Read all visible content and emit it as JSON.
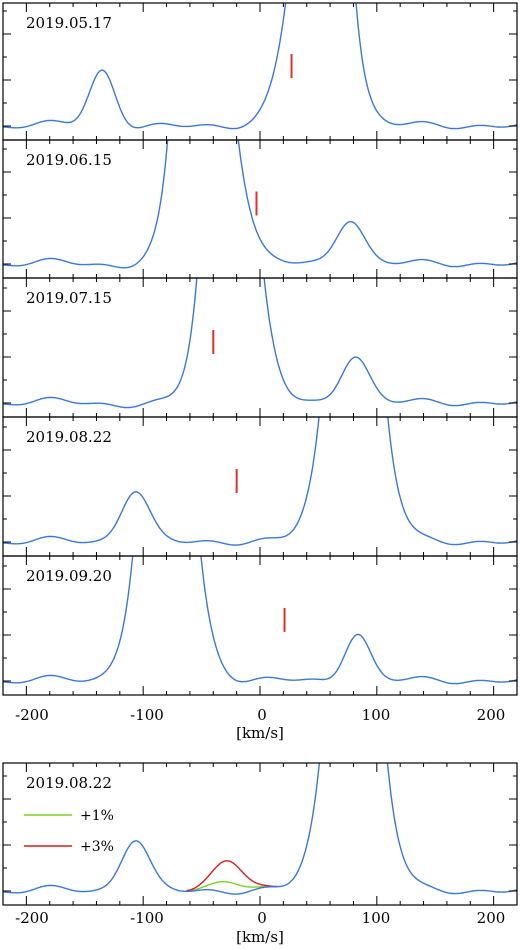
{
  "figure": {
    "colors": {
      "spectrum": "#3a78d8",
      "marker": "#e0302a",
      "legend_plus1": "#7ed321",
      "legend_plus3": "#d81c1c",
      "axes": "#000000"
    }
  },
  "chart_data": [
    {
      "type": "line",
      "panel": "2019.05.17",
      "xlim": [
        -220,
        220
      ],
      "x_ticks": [
        -200,
        -100,
        0,
        100,
        200
      ],
      "x_tick_labels_shown": false,
      "marker_velocity": 27,
      "components": [
        {
          "center": -135,
          "sigma": 11,
          "amplitude": 0.45
        },
        {
          "center": 57,
          "sigma": 12,
          "amplitude": 3.0
        },
        {
          "center": 50,
          "sigma": 20,
          "amplitude": 2.5
        }
      ]
    },
    {
      "type": "line",
      "panel": "2019.06.15",
      "xlim": [
        -220,
        220
      ],
      "x_ticks": [
        -200,
        -100,
        0,
        100,
        200
      ],
      "x_tick_labels_shown": false,
      "marker_velocity": -3,
      "components": [
        {
          "center": -54,
          "sigma": 12,
          "amplitude": 3.0
        },
        {
          "center": -46,
          "sigma": 20,
          "amplitude": 2.5
        },
        {
          "center": 77,
          "sigma": 12,
          "amplitude": 0.38
        }
      ]
    },
    {
      "type": "line",
      "panel": "2019.07.15",
      "xlim": [
        -220,
        220
      ],
      "x_ticks": [
        -200,
        -100,
        0,
        100,
        200
      ],
      "x_tick_labels_shown": false,
      "marker_velocity": -40,
      "components": [
        {
          "center": -28,
          "sigma": 12,
          "amplitude": 3.0
        },
        {
          "center": -24,
          "sigma": 19,
          "amplitude": 2.5
        },
        {
          "center": 81,
          "sigma": 12,
          "amplitude": 0.4
        }
      ]
    },
    {
      "type": "line",
      "panel": "2019.08.22",
      "xlim": [
        -220,
        220
      ],
      "x_ticks": [
        -200,
        -100,
        0,
        100,
        200
      ],
      "x_tick_labels_shown": false,
      "marker_velocity": -20,
      "components": [
        {
          "center": -107,
          "sigma": 12,
          "amplitude": 0.43
        },
        {
          "center": 80,
          "sigma": 12,
          "amplitude": 3.0
        },
        {
          "center": 80,
          "sigma": 20,
          "amplitude": 2.5
        }
      ]
    },
    {
      "type": "line",
      "panel": "2019.09.20",
      "xlim": [
        -220,
        220
      ],
      "x_ticks": [
        -200,
        -100,
        0,
        100,
        200
      ],
      "x_tick_labels_shown": true,
      "marker_velocity": 21,
      "components": [
        {
          "center": -80,
          "sigma": 12,
          "amplitude": 3.0
        },
        {
          "center": -80,
          "sigma": 20,
          "amplitude": 2.5
        },
        {
          "center": 83,
          "sigma": 11,
          "amplitude": 0.4
        }
      ]
    },
    {
      "type": "line",
      "panel": "2019.08.22",
      "xlim": [
        -220,
        220
      ],
      "x_ticks": [
        -200,
        -100,
        0,
        100,
        200
      ],
      "x_tick_labels_shown": true,
      "xlabel": "[km/s]",
      "legend": {
        "position": "top-left",
        "entries": [
          "+1%",
          "+3%"
        ]
      },
      "components": [
        {
          "center": -107,
          "sigma": 12,
          "amplitude": 0.43
        },
        {
          "center": 80,
          "sigma": 12,
          "amplitude": 3.0
        },
        {
          "center": 80,
          "sigma": 20,
          "amplitude": 2.5
        }
      ],
      "injected_signal": {
        "center": -27,
        "sigma": 13,
        "range": [
          -63,
          15
        ],
        "amplitudes": {
          "+1%": 0.09,
          "+3%": 0.26
        }
      }
    }
  ],
  "axes_text": {
    "xlabel_top_block": "[km/s]",
    "xlabel_bottom_panel": "[km/s]",
    "tick_labels": [
      "-200",
      "-100",
      "0",
      "100",
      "200"
    ]
  }
}
